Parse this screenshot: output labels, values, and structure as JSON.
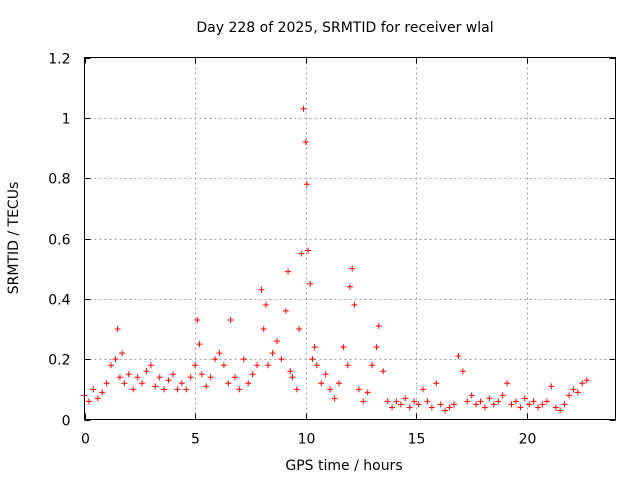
{
  "chart_data": {
    "type": "scatter",
    "title": "Day 228 of 2025, SRMTID for receiver wlal",
    "xlabel": "GPS time / hours",
    "ylabel": "SRMTID / TECUs",
    "xlim": [
      0,
      24
    ],
    "ylim": [
      0,
      1.2
    ],
    "x_ticks": [
      "0",
      "5",
      "10",
      "15",
      "20"
    ],
    "x_tick_values": [
      0,
      5,
      10,
      15,
      20
    ],
    "y_ticks": [
      "0",
      "0.2",
      "0.4",
      "0.6",
      "0.8",
      "1",
      "1.2"
    ],
    "y_tick_values": [
      0,
      0.2,
      0.4,
      0.6,
      0.8,
      1.0,
      1.2
    ],
    "grid": true,
    "marker": "+",
    "series": [
      {
        "name": "SRMTID",
        "color": "#ff0000",
        "x": [
          0.0,
          0.2,
          0.4,
          0.6,
          0.8,
          1.0,
          1.2,
          1.4,
          1.5,
          1.6,
          1.7,
          1.8,
          2.0,
          2.2,
          2.4,
          2.6,
          2.8,
          3.0,
          3.2,
          3.4,
          3.6,
          3.8,
          4.0,
          4.2,
          4.4,
          4.6,
          4.8,
          5.0,
          5.1,
          5.2,
          5.3,
          5.5,
          5.7,
          5.9,
          6.1,
          6.3,
          6.5,
          6.6,
          6.8,
          7.0,
          7.2,
          7.4,
          7.6,
          7.8,
          8.0,
          8.1,
          8.2,
          8.3,
          8.5,
          8.7,
          8.9,
          9.1,
          9.2,
          9.3,
          9.4,
          9.6,
          9.7,
          9.8,
          9.9,
          10.0,
          10.05,
          10.1,
          10.2,
          10.3,
          10.4,
          10.5,
          10.7,
          10.9,
          11.1,
          11.3,
          11.5,
          11.7,
          11.9,
          12.0,
          12.1,
          12.2,
          12.4,
          12.6,
          12.8,
          13.0,
          13.2,
          13.3,
          13.5,
          13.7,
          13.9,
          14.1,
          14.3,
          14.5,
          14.7,
          14.9,
          15.1,
          15.3,
          15.5,
          15.7,
          15.9,
          16.1,
          16.3,
          16.5,
          16.7,
          16.9,
          17.1,
          17.3,
          17.5,
          17.7,
          17.9,
          18.1,
          18.3,
          18.5,
          18.7,
          18.9,
          19.1,
          19.3,
          19.5,
          19.7,
          19.9,
          20.1,
          20.3,
          20.5,
          20.7,
          20.9,
          21.1,
          21.3,
          21.5,
          21.7,
          21.9,
          22.1,
          22.3,
          22.5,
          22.7
        ],
        "y": [
          0.08,
          0.06,
          0.1,
          0.07,
          0.09,
          0.12,
          0.18,
          0.2,
          0.3,
          0.14,
          0.22,
          0.12,
          0.15,
          0.1,
          0.14,
          0.12,
          0.16,
          0.18,
          0.11,
          0.14,
          0.1,
          0.13,
          0.15,
          0.1,
          0.12,
          0.1,
          0.14,
          0.18,
          0.33,
          0.25,
          0.15,
          0.11,
          0.14,
          0.2,
          0.22,
          0.18,
          0.12,
          0.33,
          0.14,
          0.1,
          0.2,
          0.12,
          0.15,
          0.18,
          0.43,
          0.3,
          0.38,
          0.18,
          0.22,
          0.26,
          0.2,
          0.36,
          0.49,
          0.16,
          0.14,
          0.1,
          0.3,
          0.55,
          1.03,
          0.92,
          0.78,
          0.56,
          0.45,
          0.2,
          0.24,
          0.18,
          0.12,
          0.15,
          0.1,
          0.07,
          0.12,
          0.24,
          0.18,
          0.44,
          0.5,
          0.38,
          0.1,
          0.06,
          0.09,
          0.18,
          0.24,
          0.31,
          0.16,
          0.06,
          0.04,
          0.06,
          0.05,
          0.07,
          0.04,
          0.06,
          0.05,
          0.1,
          0.06,
          0.04,
          0.12,
          0.05,
          0.03,
          0.04,
          0.05,
          0.21,
          0.16,
          0.06,
          0.08,
          0.05,
          0.06,
          0.04,
          0.07,
          0.05,
          0.06,
          0.08,
          0.12,
          0.05,
          0.06,
          0.04,
          0.07,
          0.05,
          0.06,
          0.04,
          0.05,
          0.06,
          0.11,
          0.04,
          0.03,
          0.05,
          0.08,
          0.1,
          0.09,
          0.12,
          0.13
        ]
      }
    ]
  }
}
